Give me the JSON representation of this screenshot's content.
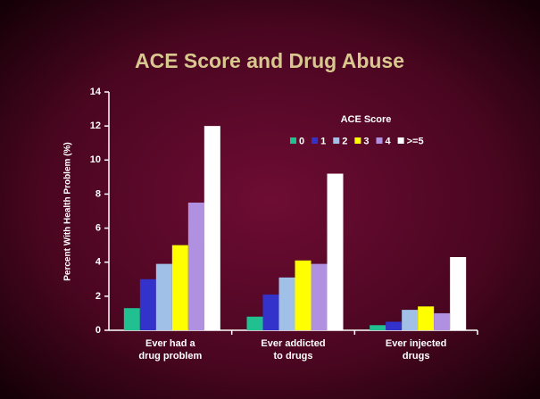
{
  "chart_data": {
    "type": "bar",
    "title": "ACE Score and Drug Abuse",
    "y_label": "Percent With Health Problem  (%)",
    "categories": [
      [
        "Ever had a",
        "drug problem"
      ],
      [
        "Ever addicted",
        "to drugs"
      ],
      [
        "Ever injected",
        "drugs"
      ]
    ],
    "legend_title": "ACE Score",
    "legend": "upper right",
    "series": [
      {
        "name": "0",
        "color": "#20c090",
        "values": [
          1.3,
          0.8,
          0.3
        ]
      },
      {
        "name": "1",
        "color": "#3333cc",
        "values": [
          3.0,
          2.1,
          0.5
        ]
      },
      {
        "name": "2",
        "color": "#a0c0e8",
        "values": [
          3.9,
          3.1,
          1.2
        ]
      },
      {
        "name": "3",
        "color": "#ffff00",
        "values": [
          5.0,
          4.1,
          1.4
        ]
      },
      {
        "name": "4",
        "color": "#b090e0",
        "values": [
          7.5,
          3.9,
          1.0
        ]
      },
      {
        "name": ">=5",
        "color": "#ffffff",
        "values": [
          12.0,
          9.2,
          4.3
        ]
      }
    ],
    "ylim": [
      0,
      14
    ],
    "yticks": [
      0,
      2,
      4,
      6,
      8,
      10,
      12,
      14
    ]
  }
}
